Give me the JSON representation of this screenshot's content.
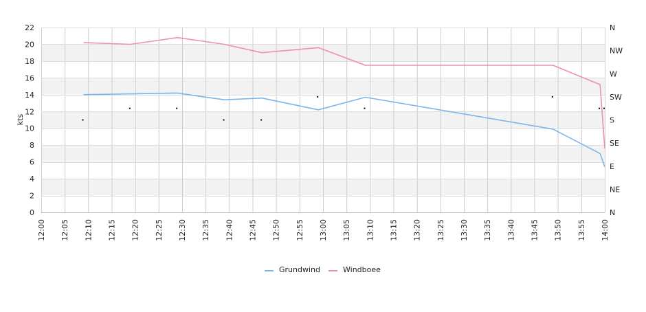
{
  "chart_data": {
    "type": "line",
    "ylabel": "kts",
    "ylim": [
      0,
      22
    ],
    "yticks": [
      0,
      2,
      4,
      6,
      8,
      10,
      12,
      14,
      16,
      18,
      20,
      22
    ],
    "xlim": [
      "12:00",
      "14:00"
    ],
    "xticks": [
      "12:00",
      "12:05",
      "12:10",
      "12:15",
      "12:20",
      "12:25",
      "12:30",
      "12:35",
      "12:40",
      "12:45",
      "12:50",
      "12:55",
      "13:00",
      "13:05",
      "13:10",
      "13:15",
      "13:20",
      "13:25",
      "13:30",
      "13:35",
      "13:40",
      "13:45",
      "13:50",
      "13:55",
      "14:00"
    ],
    "right_axis_labels": [
      "N",
      "NE",
      "E",
      "SE",
      "S",
      "SW",
      "W",
      "NW",
      "N"
    ],
    "grid": true,
    "alternating_bands": true,
    "legend_position": "bottom",
    "series": [
      {
        "name": "Grundwind",
        "color": "#7cb5ec",
        "points": [
          {
            "x": "12:09",
            "y": 14.0
          },
          {
            "x": "12:19",
            "y": 14.1
          },
          {
            "x": "12:29",
            "y": 14.2
          },
          {
            "x": "12:39",
            "y": 13.4
          },
          {
            "x": "12:47",
            "y": 13.6
          },
          {
            "x": "12:59",
            "y": 12.2
          },
          {
            "x": "13:09",
            "y": 13.7
          },
          {
            "x": "13:49",
            "y": 9.9
          },
          {
            "x": "13:59",
            "y": 7.0
          },
          {
            "x": "14:00",
            "y": 5.4
          }
        ]
      },
      {
        "name": "Windboee",
        "color": "#f08cb8",
        "points": [
          {
            "x": "12:09",
            "y": 20.2
          },
          {
            "x": "12:19",
            "y": 20.0
          },
          {
            "x": "12:29",
            "y": 20.8
          },
          {
            "x": "12:39",
            "y": 20.0
          },
          {
            "x": "12:47",
            "y": 19.0
          },
          {
            "x": "12:59",
            "y": 19.6
          },
          {
            "x": "13:09",
            "y": 17.5
          },
          {
            "x": "13:49",
            "y": 17.5
          },
          {
            "x": "13:59",
            "y": 15.2
          },
          {
            "x": "14:00",
            "y": 7.6
          }
        ]
      }
    ],
    "direction_markers": [
      {
        "x": "12:09",
        "dir": "S"
      },
      {
        "x": "12:19",
        "dir": "S/SW"
      },
      {
        "x": "12:29",
        "dir": "S/SW"
      },
      {
        "x": "12:39",
        "dir": "S"
      },
      {
        "x": "12:47",
        "dir": "S"
      },
      {
        "x": "12:59",
        "dir": "SW"
      },
      {
        "x": "13:09",
        "dir": "S/SW"
      },
      {
        "x": "13:49",
        "dir": "SW"
      },
      {
        "x": "13:59",
        "dir": "S/SW"
      },
      {
        "x": "14:00",
        "dir": "S/SW"
      }
    ]
  }
}
